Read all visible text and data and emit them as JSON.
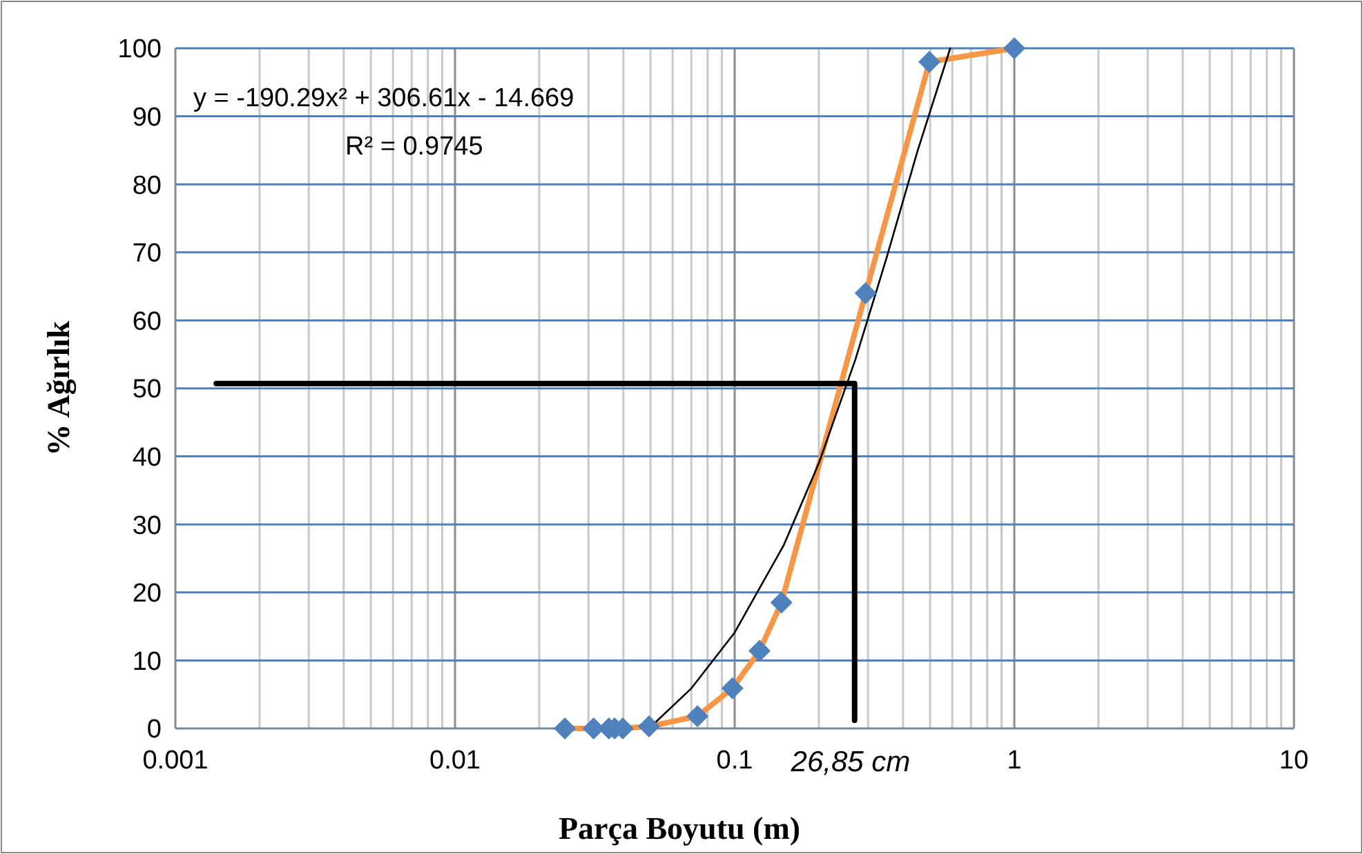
{
  "chart_data": {
    "type": "scatter",
    "xlabel": "Parça Boyutu (m)",
    "ylabel": "% Ağırlık",
    "log": "x",
    "grid": true,
    "xlim": [
      0.001,
      10
    ],
    "xticks": [
      {
        "value": 0.001,
        "label": "0.001"
      },
      {
        "value": 0.01,
        "label": "0.01"
      },
      {
        "value": 0.1,
        "label": "0.1"
      },
      {
        "value": 1,
        "label": "1"
      },
      {
        "value": 10,
        "label": "10"
      }
    ],
    "ylim": [
      0,
      100
    ],
    "yticks": [
      0,
      10,
      20,
      30,
      40,
      50,
      60,
      70,
      80,
      90,
      100
    ],
    "series": [
      {
        "type": "line",
        "color": "#f79646",
        "marker": "none",
        "line_style": "solid",
        "x": [
          0.0247,
          0.0313,
          0.0355,
          0.0372,
          0.0398,
          0.0494,
          0.0736,
          0.0982,
          0.1227,
          0.147,
          0.294,
          0.497,
          1
        ],
        "values": [
          0,
          0,
          0,
          0,
          0,
          0.3,
          1.8,
          5.9,
          11.4,
          18.5,
          64,
          98,
          100
        ]
      },
      {
        "type": "line",
        "color": "#000000",
        "marker": "none",
        "line_style": "solid",
        "x": [
          0.05,
          0.07,
          0.1,
          0.15,
          0.2,
          0.27,
          0.35,
          0.45,
          0.59
        ],
        "values": [
          0.2,
          5.9,
          14.1,
          27,
          39,
          54.2,
          69.3,
          84.8,
          100
        ]
      },
      {
        "type": "line",
        "color": "#000000",
        "marker": "none",
        "line_style": "solid",
        "x": [
          0.0014,
          0.2685,
          0.2685
        ],
        "values": [
          50.7,
          50.7,
          1.2
        ]
      },
      {
        "color": "#4f81bd",
        "marker": "diamond",
        "x": [
          0.0247,
          0.0313,
          0.0355,
          0.0372,
          0.0398,
          0.0494,
          0.0736,
          0.0982,
          0.1227,
          0.147,
          0.294,
          0.497,
          1
        ],
        "values": [
          0,
          0,
          0,
          0,
          0,
          0.3,
          1.8,
          5.9,
          11.4,
          18.5,
          64,
          98,
          100
        ]
      }
    ],
    "annotations": [
      "y = -190.29x² + 306.61x - 14.669",
      "R² = 0.9745",
      "26,85 cm"
    ]
  }
}
